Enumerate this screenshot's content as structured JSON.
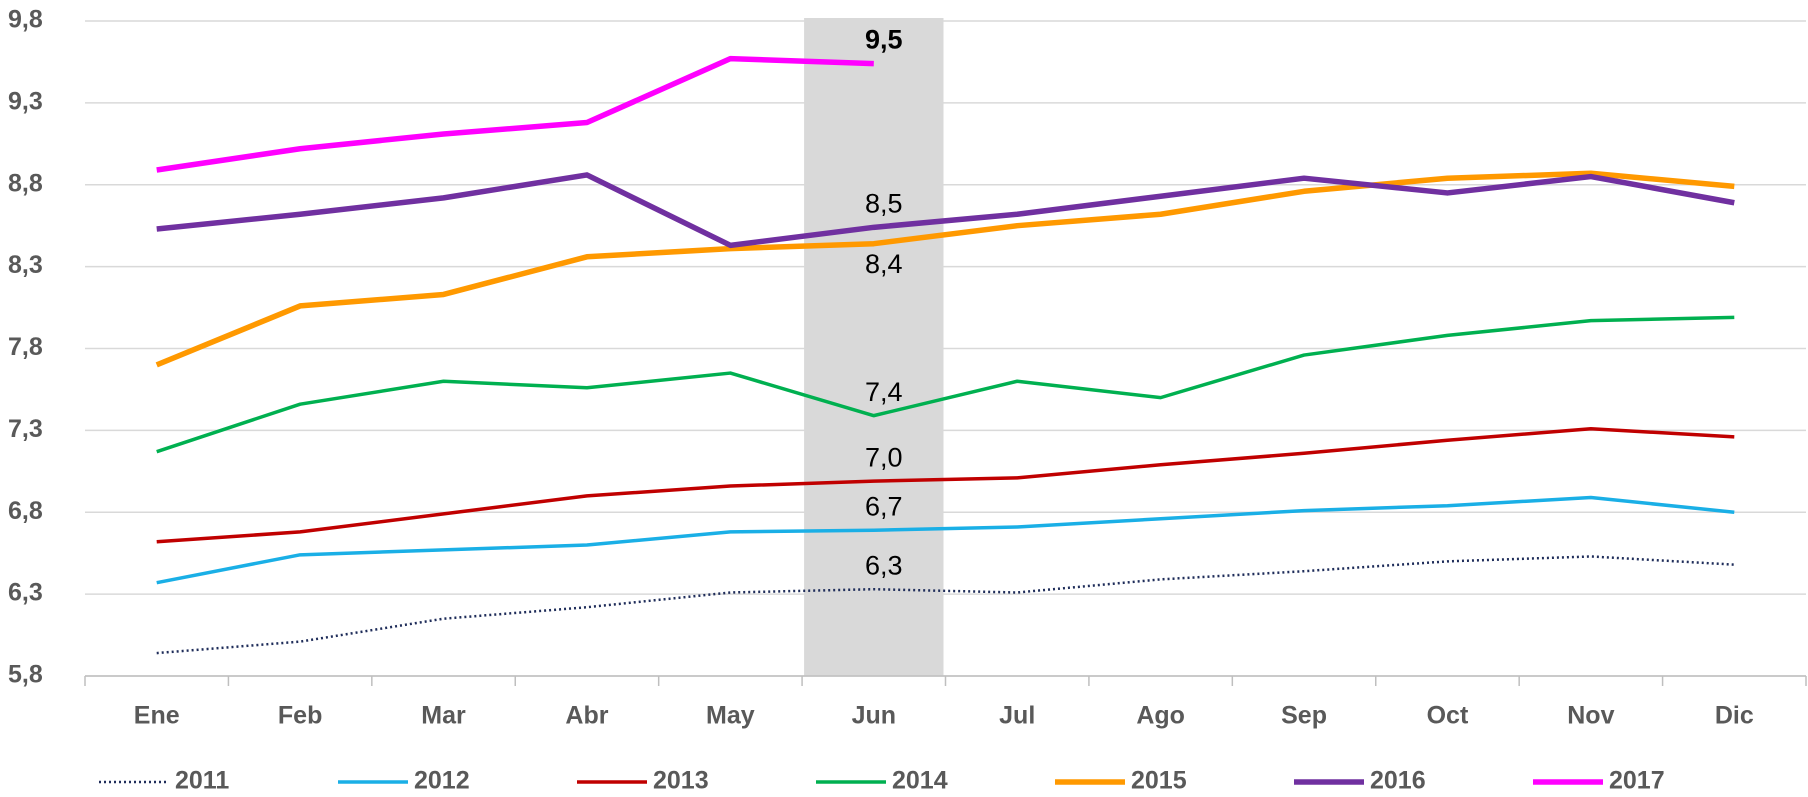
{
  "chart_data": {
    "type": "line",
    "categories": [
      "Ene",
      "Feb",
      "Mar",
      "Abr",
      "May",
      "Jun",
      "Jul",
      "Ago",
      "Sep",
      "Oct",
      "Nov",
      "Dic"
    ],
    "ylim": [
      5.8,
      9.8
    ],
    "yticks": [
      {
        "value": 5.8,
        "label": "5,8"
      },
      {
        "value": 6.3,
        "label": "6,3"
      },
      {
        "value": 6.8,
        "label": "6,8"
      },
      {
        "value": 7.3,
        "label": "7,3"
      },
      {
        "value": 7.8,
        "label": "7,8"
      },
      {
        "value": 8.3,
        "label": "8,3"
      },
      {
        "value": 8.8,
        "label": "8,8"
      },
      {
        "value": 9.3,
        "label": "9,3"
      },
      {
        "value": 9.8,
        "label": "9,8"
      }
    ],
    "grid": true,
    "legend": "bottom",
    "series": [
      {
        "name": "2011",
        "color": "#1f2d5a",
        "dash": "dotted",
        "values": [
          5.94,
          6.01,
          6.15,
          6.22,
          6.31,
          6.33,
          6.31,
          6.39,
          6.44,
          6.5,
          6.53,
          6.48
        ],
        "value_labels": [
          null,
          null,
          null,
          null,
          null,
          "6,3",
          null,
          null,
          null,
          null,
          null,
          null
        ]
      },
      {
        "name": "2012",
        "color": "#1aafe6",
        "values": [
          6.37,
          6.54,
          6.57,
          6.6,
          6.68,
          6.69,
          6.71,
          6.76,
          6.81,
          6.84,
          6.89,
          6.8
        ],
        "value_labels": [
          null,
          null,
          null,
          null,
          null,
          "6,7",
          null,
          null,
          null,
          null,
          null,
          null
        ]
      },
      {
        "name": "2013",
        "color": "#c00000",
        "values": [
          6.62,
          6.68,
          6.79,
          6.9,
          6.96,
          6.99,
          7.01,
          7.09,
          7.16,
          7.24,
          7.31,
          7.26
        ],
        "value_labels": [
          null,
          null,
          null,
          null,
          null,
          "7,0",
          null,
          null,
          null,
          null,
          null,
          null
        ]
      },
      {
        "name": "2014",
        "color": "#00b050",
        "values": [
          7.17,
          7.46,
          7.6,
          7.56,
          7.65,
          7.39,
          7.6,
          7.5,
          7.76,
          7.88,
          7.97,
          7.99
        ],
        "value_labels": [
          null,
          null,
          null,
          null,
          null,
          "7,4",
          null,
          null,
          null,
          null,
          null,
          null
        ]
      },
      {
        "name": "2015",
        "color": "#ff9900",
        "values": [
          7.7,
          8.06,
          8.13,
          8.36,
          8.41,
          8.44,
          8.55,
          8.62,
          8.76,
          8.84,
          8.87,
          8.79
        ],
        "value_labels": [
          null,
          null,
          null,
          null,
          null,
          "8,4",
          null,
          null,
          null,
          null,
          null,
          null
        ]
      },
      {
        "name": "2016",
        "color": "#7030a0",
        "values": [
          8.53,
          8.62,
          8.72,
          8.86,
          8.43,
          8.54,
          8.62,
          8.73,
          8.84,
          8.75,
          8.85,
          8.69
        ],
        "value_labels": [
          null,
          null,
          null,
          null,
          null,
          "8,5",
          null,
          null,
          null,
          null,
          null,
          null
        ]
      },
      {
        "name": "2017",
        "color": "#ff00ff",
        "values": [
          8.89,
          9.02,
          9.11,
          9.18,
          9.57,
          9.54,
          null,
          null,
          null,
          null,
          null,
          null
        ],
        "value_labels": [
          null,
          null,
          null,
          null,
          null,
          "9,5",
          null,
          null,
          null,
          null,
          null,
          null
        ]
      }
    ]
  }
}
